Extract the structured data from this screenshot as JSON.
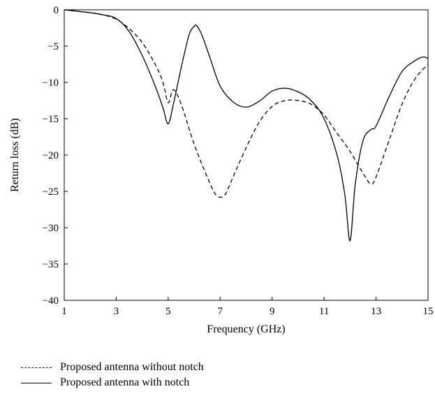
{
  "chart_data": {
    "type": "line",
    "title": "",
    "xlabel": "Frequency (GHz)",
    "ylabel": "Return loss (dB)",
    "xlim": [
      1,
      15
    ],
    "ylim": [
      -40,
      0
    ],
    "xticks": [
      1,
      3,
      5,
      7,
      9,
      11,
      13,
      15
    ],
    "yticks": [
      0,
      -5,
      -10,
      -15,
      -20,
      -25,
      -30,
      -35,
      -40
    ],
    "xtick_labels": [
      "1",
      "3",
      "5",
      "7",
      "9",
      "11",
      "13",
      "15"
    ],
    "ytick_labels": [
      "0",
      "−5",
      "−10",
      "−15",
      "−20",
      "−25",
      "−30",
      "−35",
      "−40"
    ],
    "grid": false,
    "legend_position": "bottom-left, below plot",
    "series": [
      {
        "name": "Proposed antenna without notch",
        "style": "dashed",
        "color": "#000000",
        "x": [
          1.0,
          1.5,
          2.0,
          2.5,
          3.0,
          3.5,
          4.0,
          4.5,
          4.8,
          5.0,
          5.2,
          5.5,
          6.0,
          6.5,
          6.8,
          7.0,
          7.2,
          7.5,
          8.0,
          8.5,
          9.0,
          9.5,
          10.0,
          10.5,
          11.0,
          11.5,
          12.0,
          12.5,
          12.8,
          13.0,
          13.5,
          14.0,
          14.5,
          15.0
        ],
        "y": [
          0.0,
          -0.2,
          -0.4,
          -0.7,
          -1.3,
          -2.6,
          -4.5,
          -7.5,
          -10.0,
          -12.8,
          -11.0,
          -13.0,
          -18.5,
          -23.0,
          -25.3,
          -25.8,
          -25.4,
          -23.0,
          -19.0,
          -15.5,
          -13.3,
          -12.5,
          -12.5,
          -13.0,
          -14.5,
          -17.0,
          -19.5,
          -22.5,
          -24.0,
          -23.0,
          -18.0,
          -13.0,
          -9.5,
          -7.5
        ]
      },
      {
        "name": "Proposed antenna with notch",
        "style": "solid",
        "color": "#000000",
        "x": [
          1.0,
          1.5,
          2.0,
          2.5,
          3.0,
          3.5,
          4.0,
          4.5,
          4.8,
          5.0,
          5.2,
          5.5,
          5.8,
          6.0,
          6.1,
          6.3,
          6.6,
          7.0,
          7.5,
          8.0,
          8.5,
          9.0,
          9.5,
          10.0,
          10.5,
          11.0,
          11.5,
          11.8,
          12.0,
          12.2,
          12.5,
          12.8,
          13.0,
          13.5,
          14.0,
          14.5,
          14.8,
          15.0
        ],
        "y": [
          0.0,
          -0.2,
          -0.4,
          -0.7,
          -1.2,
          -3.0,
          -6.3,
          -10.5,
          -13.5,
          -15.7,
          -13.0,
          -8.0,
          -3.5,
          -2.3,
          -2.2,
          -3.5,
          -6.5,
          -10.5,
          -12.7,
          -13.4,
          -12.6,
          -11.2,
          -10.8,
          -11.3,
          -12.5,
          -15.0,
          -20.0,
          -25.5,
          -31.8,
          -24.0,
          -18.0,
          -16.5,
          -16.0,
          -12.0,
          -8.5,
          -7.0,
          -6.5,
          -6.7
        ]
      }
    ]
  }
}
